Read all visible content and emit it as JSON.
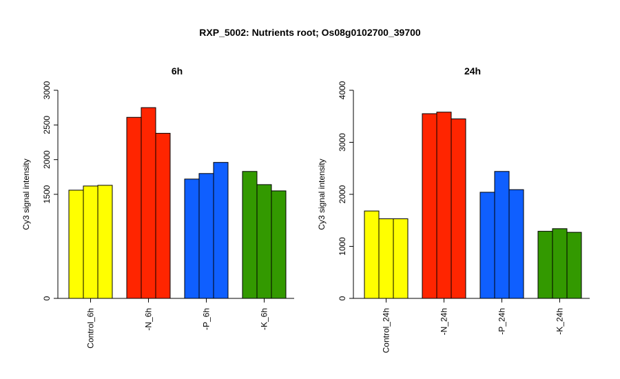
{
  "title": "RXP_5002: Nutrients root; Os08g0102700_39700",
  "chart_data": [
    {
      "type": "bar",
      "title": "6h",
      "ylabel": "Cy3 signal intensity",
      "ylim": [
        0,
        3000
      ],
      "yticks": [
        0,
        1500,
        2000,
        2500,
        3000
      ],
      "categories": [
        "Control_6h",
        "-N_6h",
        "-P_6h",
        "-K_6h"
      ],
      "colors": [
        "#ffff00",
        "#ff2500",
        "#0f5fff",
        "#339900"
      ],
      "values": [
        [
          1560,
          1620,
          1630
        ],
        [
          2610,
          2750,
          2380
        ],
        [
          1720,
          1800,
          1960
        ],
        [
          1830,
          1640,
          1550
        ]
      ]
    },
    {
      "type": "bar",
      "title": "24h",
      "ylabel": "Cy3 signal intensity",
      "ylim": [
        0,
        4000
      ],
      "yticks": [
        0,
        1000,
        2000,
        3000,
        4000
      ],
      "categories": [
        "Control_24h",
        "-N_24h",
        "-P_24h",
        "-K_24h"
      ],
      "colors": [
        "#ffff00",
        "#ff2500",
        "#0f5fff",
        "#339900"
      ],
      "values": [
        [
          1680,
          1530,
          1530
        ],
        [
          3550,
          3580,
          3450
        ],
        [
          2040,
          2440,
          2090
        ],
        [
          1290,
          1340,
          1270
        ]
      ]
    }
  ]
}
